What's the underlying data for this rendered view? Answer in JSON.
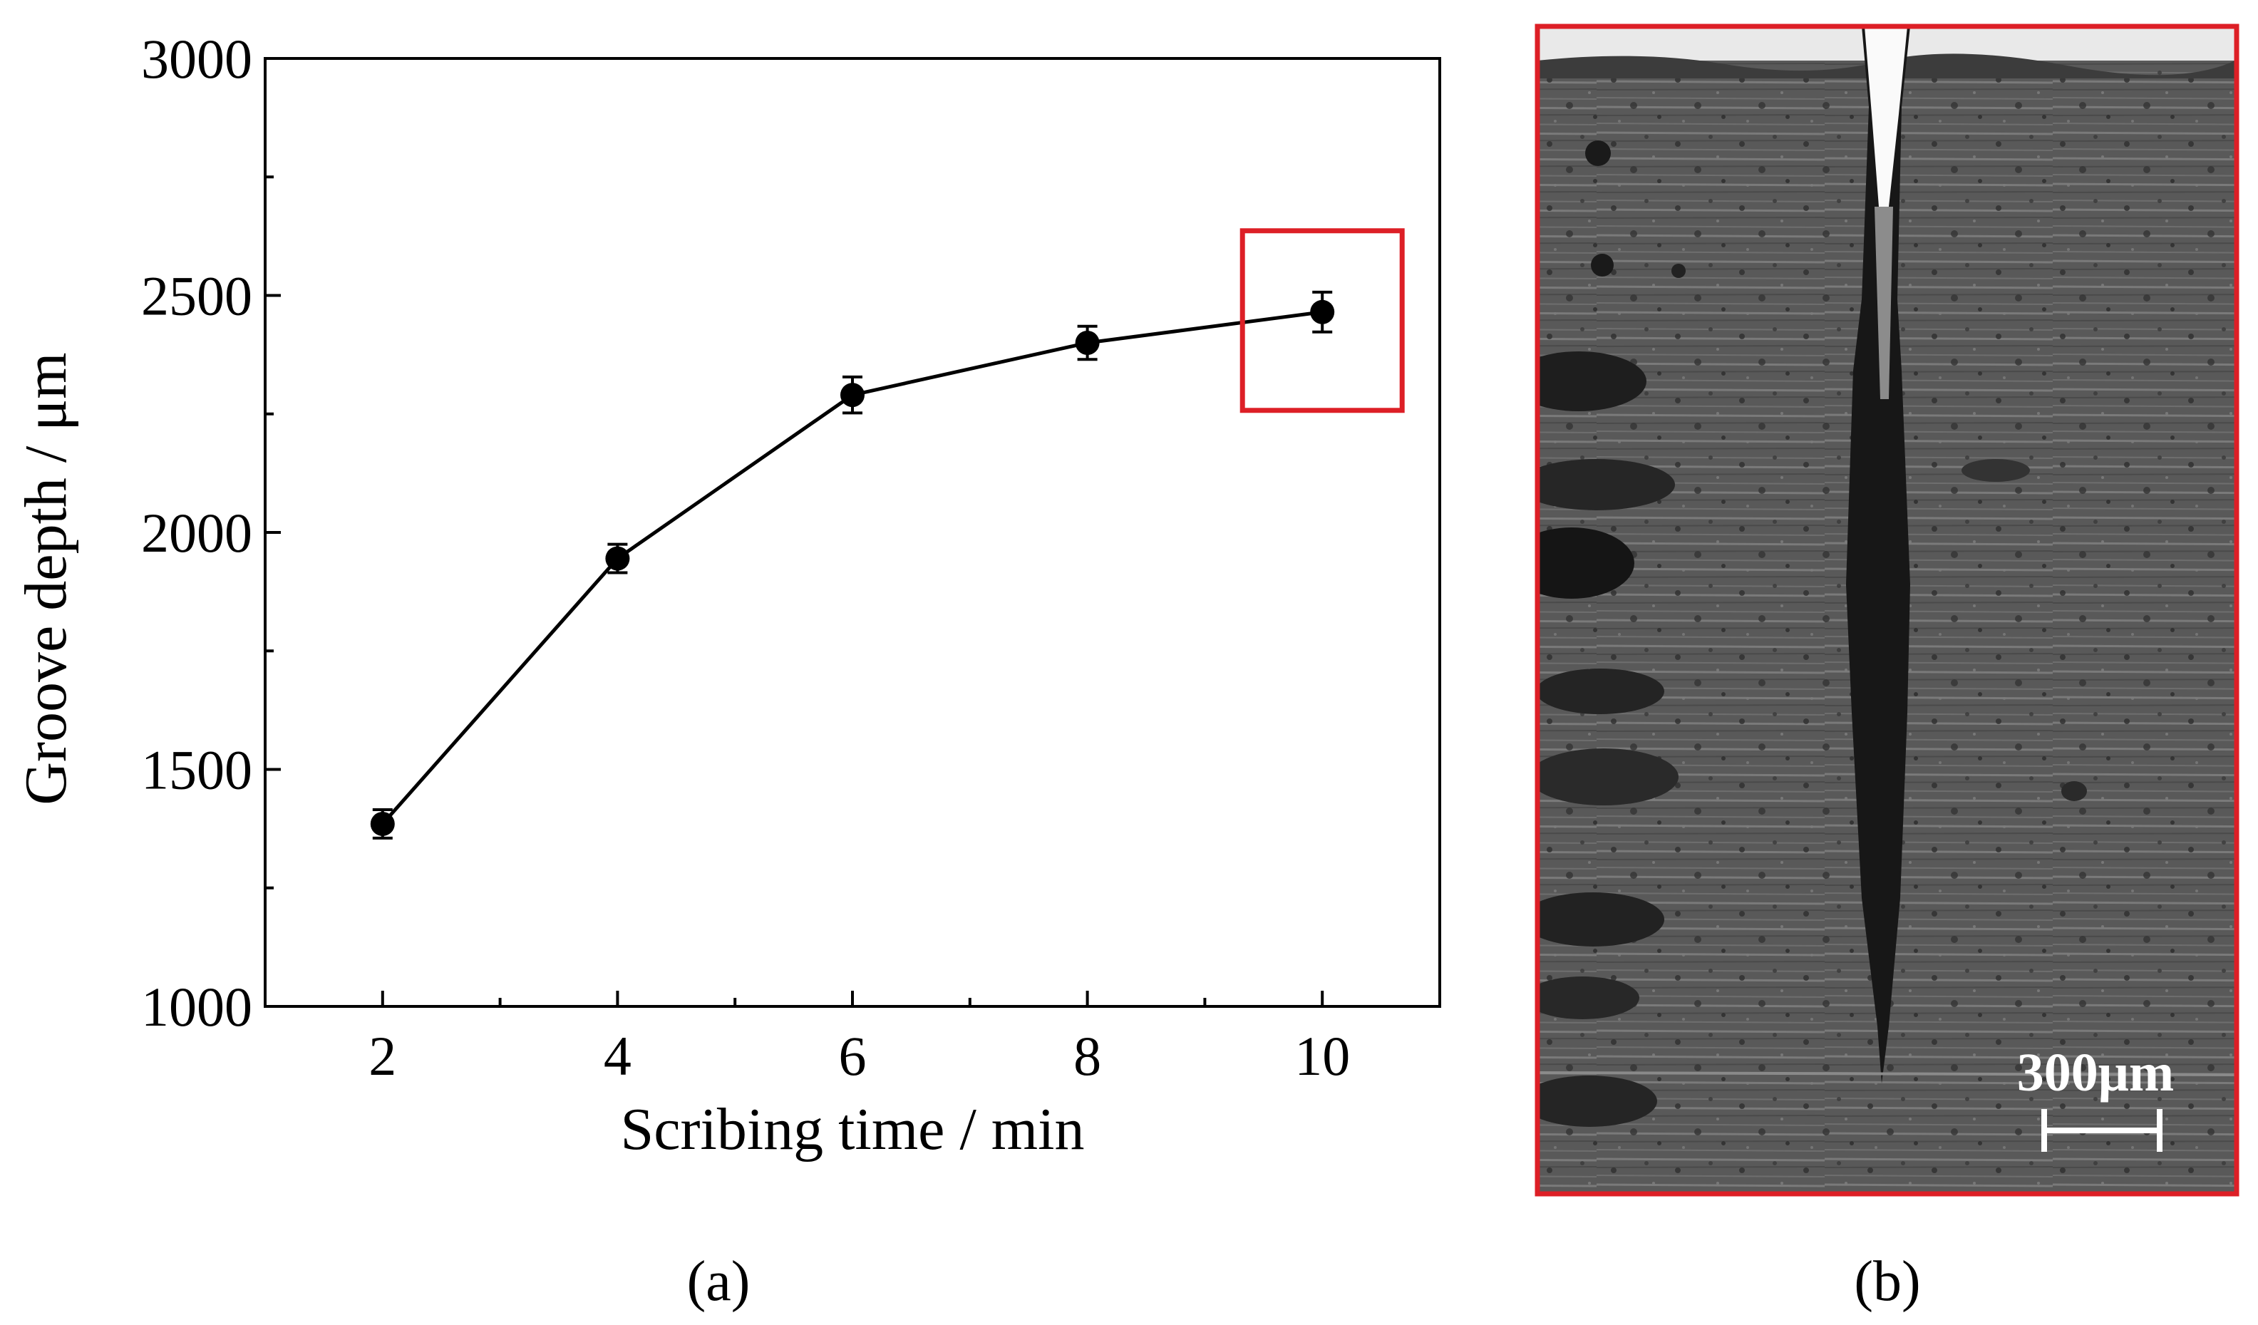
{
  "chart_data": {
    "type": "line",
    "x": [
      2,
      4,
      6,
      8,
      10
    ],
    "y": [
      1385,
      1945,
      2290,
      2400,
      2465
    ],
    "yerr": [
      30,
      30,
      38,
      35,
      42
    ],
    "xlabel": "Scribing time / min",
    "ylabel": "Groove depth / μm",
    "xlim": [
      1,
      11
    ],
    "ylim": [
      1000,
      3000
    ],
    "xticks": [
      "2",
      "4",
      "6",
      "8",
      "10"
    ],
    "yticks": [
      "1000",
      "1500",
      "2000",
      "2500",
      "3000"
    ],
    "grid": false,
    "highlight": {
      "x": 10
    },
    "line_color": "#000000",
    "highlight_color": "#dd1f26"
  },
  "panels": {
    "a_label": "(a)",
    "b_label": "(b)"
  },
  "micrograph": {
    "scale_bar_label": "300μm",
    "border_color": "#dd1f26"
  }
}
